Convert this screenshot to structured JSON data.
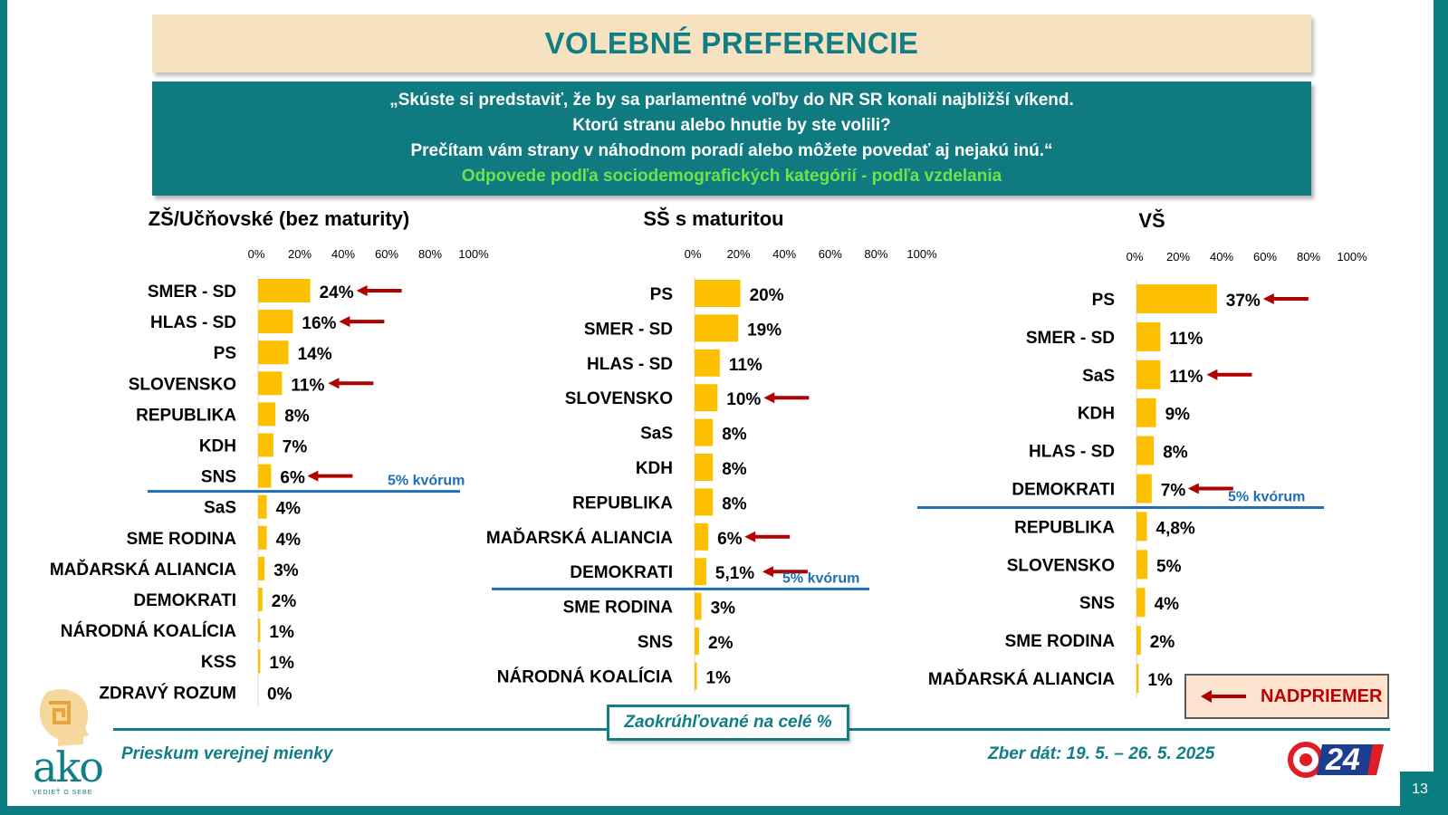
{
  "title": "VOLEBNÉ PREFERENCIE",
  "question": {
    "line1": "„Skúste si predstaviť, že by sa parlamentné voľby do NR SR konali najbližší víkend.",
    "line2": "Ktorú stranu alebo hnutie by ste volili?",
    "line3": "Prečítam vám strany v náhodnom poradí alebo môžete povedať aj nejakú inú.“",
    "subtitle": "Odpovede podľa sociodemografických kategórií - podľa vzdelania"
  },
  "colors": {
    "bar": "#fcc000",
    "teal": "#117e85",
    "quorum_line": "#1f6fb6",
    "arrow": "#b00000"
  },
  "chart_data": [
    {
      "type": "bar",
      "orientation": "horizontal",
      "title": "ZŠ/Učňovské (bez maturity)",
      "axis_ticks": [
        "0%",
        "20%",
        "40%",
        "60%",
        "80%",
        "100%"
      ],
      "xlim": [
        0,
        100
      ],
      "categories": [
        "SMER - SD",
        "HLAS - SD",
        "PS",
        "SLOVENSKO",
        "REPUBLIKA",
        "KDH",
        "SNS",
        "SaS",
        "SME RODINA",
        "MAĎARSKÁ ALIANCIA",
        "DEMOKRATI",
        "NÁRODNÁ KOALÍCIA",
        "KSS",
        "ZDRAVÝ ROZUM"
      ],
      "values": [
        24,
        16,
        14,
        11,
        8,
        7,
        6,
        4,
        4,
        3,
        2,
        1,
        1,
        0
      ],
      "labels": [
        "24%",
        "16%",
        "14%",
        "11%",
        "8%",
        "7%",
        "6%",
        "4%",
        "4%",
        "3%",
        "2%",
        "1%",
        "1%",
        "0%"
      ],
      "above_average": [
        "SMER - SD",
        "HLAS - SD",
        "SLOVENSKO",
        "SNS"
      ],
      "quorum_label": "5% kvórum",
      "quorum_after": "SNS"
    },
    {
      "type": "bar",
      "orientation": "horizontal",
      "title": "SŠ s maturitou",
      "axis_ticks": [
        "0%",
        "20%",
        "40%",
        "60%",
        "80%",
        "100%"
      ],
      "xlim": [
        0,
        100
      ],
      "categories": [
        "PS",
        "SMER - SD",
        "HLAS - SD",
        "SLOVENSKO",
        "SaS",
        "KDH",
        "REPUBLIKA",
        "MAĎARSKÁ ALIANCIA",
        "DEMOKRATI",
        "SME RODINA",
        "SNS",
        "NÁRODNÁ KOALÍCIA"
      ],
      "values": [
        20,
        19,
        11,
        10,
        8,
        8,
        8,
        6,
        5.1,
        3,
        2,
        1
      ],
      "labels": [
        "20%",
        "19%",
        "11%",
        "10%",
        "8%",
        "8%",
        "8%",
        "6%",
        "5,1%",
        "3%",
        "2%",
        "1%"
      ],
      "above_average": [
        "SLOVENSKO",
        "MAĎARSKÁ ALIANCIA",
        "DEMOKRATI"
      ],
      "quorum_label": "5% kvórum",
      "quorum_after": "DEMOKRATI"
    },
    {
      "type": "bar",
      "orientation": "horizontal",
      "title": "VŠ",
      "axis_ticks": [
        "0%",
        "20%",
        "40%",
        "60%",
        "80%",
        "100%"
      ],
      "xlim": [
        0,
        100
      ],
      "categories": [
        "PS",
        "SMER - SD",
        "SaS",
        "KDH",
        "HLAS - SD",
        "DEMOKRATI",
        "REPUBLIKA",
        "SLOVENSKO",
        "SNS",
        "SME RODINA",
        "MAĎARSKÁ ALIANCIA"
      ],
      "values": [
        37,
        11,
        11,
        9,
        8,
        7,
        4.8,
        5,
        4,
        2,
        1
      ],
      "labels": [
        "37%",
        "11%",
        "11%",
        "9%",
        "8%",
        "7%",
        "4,8%",
        "5%",
        "4%",
        "2%",
        "1%"
      ],
      "above_average": [
        "PS",
        "SaS",
        "DEMOKRATI"
      ],
      "quorum_label": "5% kvórum",
      "quorum_after": "DEMOKRATI"
    }
  ],
  "legend": {
    "above_average_label": "NADPRIEMER"
  },
  "footer": {
    "note": "Zaokrúhľované na celé %",
    "survey": "Prieskum verejnej mienky",
    "dates": "Zber dát: 19. 5. – 26. 5. 2025",
    "page_number": "13",
    "logo_left": "ako",
    "logo_left_tagline": "VEDIEŤ O SEBE",
    "logo_right": "24"
  }
}
